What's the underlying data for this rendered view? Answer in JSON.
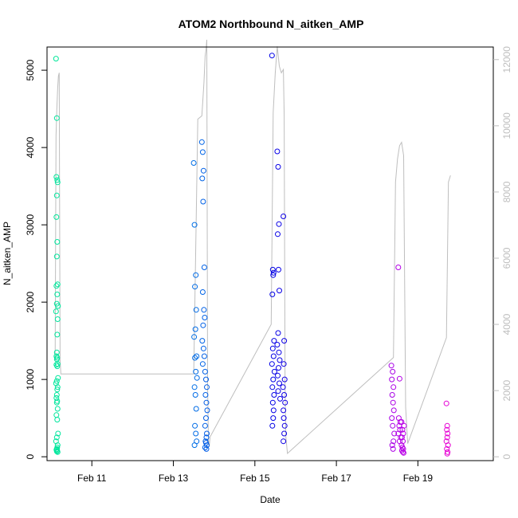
{
  "chart_data": {
    "type": "scatter",
    "title": "ATOM2 Northbound N_aitken_AMP",
    "xlabel": "Date",
    "ylabel": "N_aitken_AMP",
    "x_ticks": [
      "Feb 11",
      "Feb 13",
      "Feb 15",
      "Feb 17",
      "Feb 19"
    ],
    "x_tick_days": [
      11,
      13,
      15,
      17,
      19
    ],
    "xlim": [
      9.9,
      20.85
    ],
    "ylim": [
      -50,
      5300
    ],
    "y_ticks": [
      0,
      1000,
      2000,
      3000,
      4000,
      5000
    ],
    "y2_ticks": [
      0,
      2000,
      4000,
      6000,
      8000,
      10000,
      12000
    ],
    "y2lim": [
      -116,
      12380
    ],
    "grid": false,
    "legend": "none",
    "point_color_scale": "rainbow by time (cyan-green to magenta)",
    "secondary_line_color": "#bebebe",
    "series": [
      {
        "type": "points",
        "axis": "left",
        "x": [
          10.12,
          10.14,
          10.13,
          10.15,
          10.16,
          10.14,
          10.13,
          10.15,
          10.14,
          10.16,
          10.13,
          10.15,
          10.14,
          10.17,
          10.12,
          10.16,
          10.15,
          10.14,
          10.13,
          10.15,
          10.14,
          10.16,
          10.13,
          10.15,
          10.17,
          10.14,
          10.12,
          10.16,
          10.15,
          10.14,
          10.13,
          10.15,
          10.14,
          10.16,
          10.13,
          10.15,
          10.17,
          10.14,
          10.12,
          10.16,
          10.15,
          10.14,
          10.13,
          10.15,
          10.14,
          10.16,
          13.5,
          13.52,
          13.55,
          13.53,
          13.56,
          13.54,
          13.51,
          13.57,
          13.53,
          13.55,
          13.58,
          13.52,
          13.54,
          13.56,
          13.53,
          13.55,
          13.57,
          13.52,
          13.7,
          13.72,
          13.74,
          13.71,
          13.73,
          13.76,
          13.72,
          13.75,
          13.77,
          13.73,
          13.71,
          13.74,
          13.76,
          13.72,
          13.78,
          13.8,
          13.82,
          13.79,
          13.81,
          13.83,
          13.8,
          13.78,
          13.82,
          13.81,
          13.79,
          13.8,
          13.82,
          13.78,
          13.81,
          15.42,
          15.44,
          15.46,
          15.45,
          15.43,
          15.47,
          15.44,
          15.46,
          15.42,
          15.48,
          15.45,
          15.43,
          15.47,
          15.44,
          15.46,
          15.45,
          15.43,
          15.55,
          15.57,
          15.59,
          15.56,
          15.58,
          15.6,
          15.57,
          15.55,
          15.59,
          15.61,
          15.58,
          15.56,
          15.6,
          15.57,
          15.62,
          15.7,
          15.72,
          15.71,
          15.73,
          15.69,
          15.72,
          15.74,
          15.7,
          15.71,
          15.73,
          15.72,
          15.7,
          18.35,
          18.38,
          18.36,
          18.4,
          18.37,
          18.39,
          18.41,
          18.36,
          18.38,
          18.42,
          18.4,
          18.37,
          18.39,
          18.52,
          18.55,
          18.53,
          18.57,
          18.54,
          18.56,
          18.52,
          18.58,
          18.55,
          18.6,
          18.62,
          18.64,
          18.61,
          18.63,
          18.65,
          18.6,
          18.66,
          18.62,
          18.64,
          18.61,
          18.63,
          19.7,
          19.72,
          19.71,
          19.73,
          19.72,
          19.7,
          19.74,
          19.71,
          19.73,
          19.72
        ],
        "y": [
          5150,
          4380,
          3620,
          3580,
          3550,
          3380,
          3100,
          2780,
          2590,
          2230,
          2210,
          2100,
          1980,
          1950,
          1880,
          1780,
          1580,
          1350,
          1300,
          1280,
          1260,
          1200,
          1190,
          1170,
          1020,
          980,
          950,
          900,
          870,
          800,
          760,
          720,
          700,
          620,
          540,
          480,
          300,
          250,
          200,
          150,
          120,
          100,
          90,
          80,
          70,
          60,
          3800,
          3000,
          2350,
          2200,
          1900,
          1650,
          1550,
          1300,
          1280,
          1100,
          1020,
          900,
          800,
          620,
          400,
          300,
          200,
          150,
          4070,
          3940,
          3700,
          3600,
          3300,
          2450,
          2130,
          1900,
          1800,
          1700,
          1500,
          1400,
          1300,
          1200,
          1100,
          1000,
          900,
          800,
          700,
          600,
          500,
          400,
          300,
          250,
          200,
          180,
          150,
          120,
          100,
          5190,
          2420,
          2380,
          2350,
          2100,
          1500,
          1400,
          1300,
          1200,
          1100,
          1000,
          900,
          800,
          700,
          600,
          500,
          400,
          3950,
          3750,
          3010,
          2880,
          2420,
          2150,
          1600,
          1450,
          1350,
          1250,
          1150,
          1050,
          950,
          850,
          750,
          3110,
          1500,
          1200,
          1000,
          900,
          800,
          700,
          600,
          500,
          400,
          300,
          200,
          1180,
          1100,
          1000,
          900,
          800,
          700,
          600,
          500,
          400,
          300,
          200,
          150,
          100,
          2450,
          1010,
          500,
          450,
          400,
          350,
          300,
          250,
          200,
          150,
          120,
          100,
          80,
          60,
          50,
          450,
          400,
          350,
          300,
          250,
          200,
          690,
          400,
          350,
          300,
          250,
          200,
          150,
          100,
          60,
          40
        ]
      },
      {
        "type": "line",
        "axis": "right",
        "x": [
          10.1,
          10.12,
          10.14,
          10.15,
          10.16,
          10.18,
          10.2,
          10.22,
          10.24,
          13.5,
          13.6,
          13.7,
          13.75,
          13.78,
          13.8,
          13.82,
          13.84,
          13.86,
          13.88,
          13.9,
          15.4,
          15.45,
          15.5,
          15.55,
          15.6,
          15.65,
          15.7,
          15.72,
          15.74,
          15.76,
          15.8,
          18.4,
          18.45,
          18.5,
          18.55,
          18.6,
          18.65,
          18.7,
          18.75,
          19.7,
          19.75,
          19.8
        ],
        "y": [
          2900,
          9700,
          10500,
          10800,
          11100,
          11500,
          11600,
          2900,
          2500,
          2500,
          10200,
          10300,
          11300,
          12100,
          12300,
          12600,
          2200,
          500,
          300,
          600,
          4000,
          10400,
          11600,
          12400,
          11800,
          11600,
          11700,
          10300,
          2100,
          600,
          100,
          3000,
          8300,
          9000,
          9400,
          9500,
          9100,
          1500,
          400,
          3600,
          8300,
          8500
        ]
      }
    ]
  }
}
